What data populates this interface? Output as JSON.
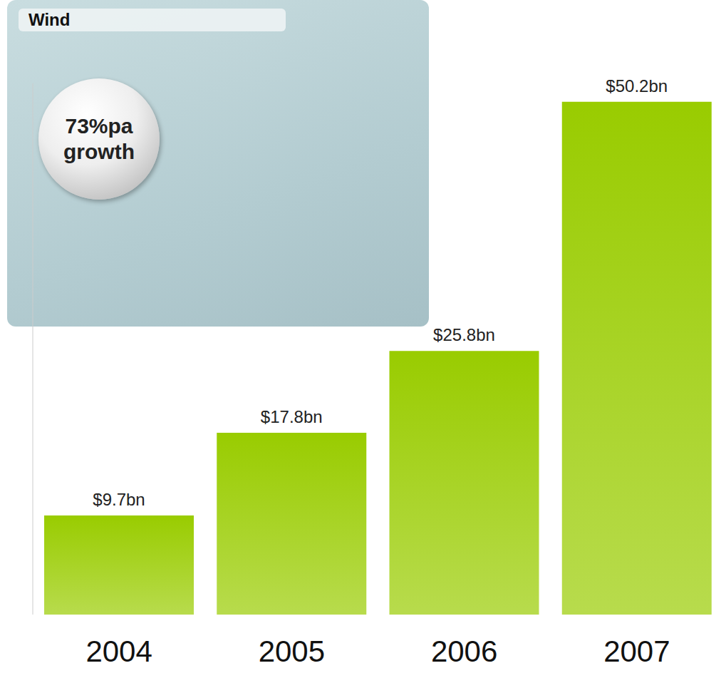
{
  "chart_data": {
    "type": "bar",
    "title": "Wind",
    "annotation": "73%pa growth",
    "categories": [
      "2004",
      "2005",
      "2006",
      "2007"
    ],
    "values": [
      9.7,
      17.8,
      25.8,
      50.2
    ],
    "value_labels": [
      "$9.7bn",
      "$17.8bn",
      "$25.8bn",
      "$50.2bn"
    ],
    "color": "#99cc00",
    "ylim": [
      0,
      52
    ],
    "yticks": [],
    "data_labels": true,
    "tick_labels": "x",
    "grid": false
  }
}
